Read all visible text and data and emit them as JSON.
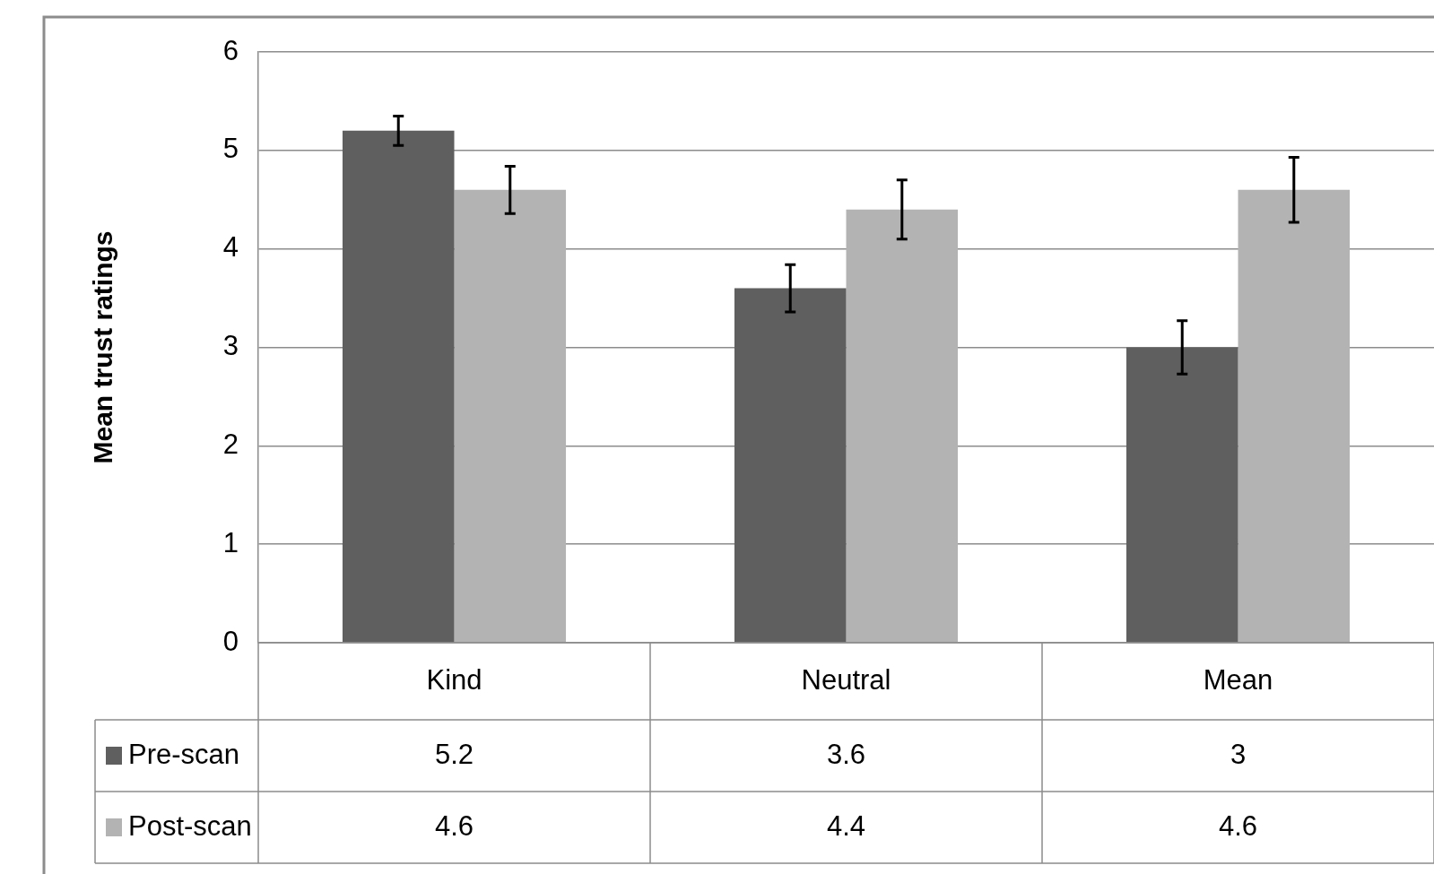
{
  "chart_data": {
    "type": "bar",
    "ylabel": "Mean trust ratings",
    "categories": [
      "Kind",
      "Neutral",
      "Mean"
    ],
    "series": [
      {
        "name": "Pre-scan",
        "color": "#5f5f5f",
        "values": [
          5.2,
          3.6,
          3
        ],
        "errors": [
          0.15,
          0.24,
          0.27
        ]
      },
      {
        "name": "Post-scan",
        "color": "#b3b3b3",
        "values": [
          4.6,
          4.4,
          4.6
        ],
        "errors": [
          0.24,
          0.3,
          0.33
        ]
      }
    ],
    "ylim": [
      0,
      6
    ],
    "yticks": [
      0,
      1,
      2,
      3,
      4,
      5,
      6
    ],
    "grid": "y",
    "legend": "bottom left",
    "data_labels": true
  }
}
